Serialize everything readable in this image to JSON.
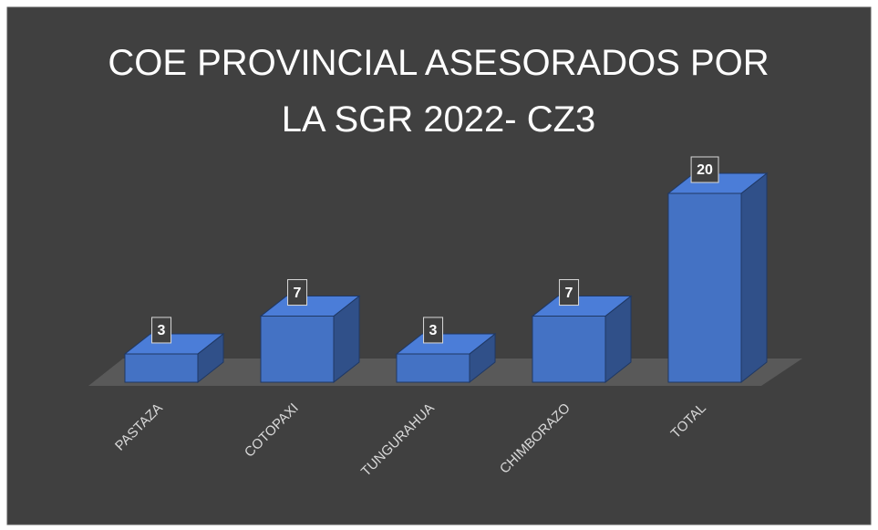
{
  "chart_data": {
    "type": "bar3d",
    "title": [
      "COE PROVINCIAL ASESORADOS POR",
      "LA SGR 2022- CZ3"
    ],
    "categories": [
      "PASTAZA",
      "COTOPAXI",
      "TUNGURAHUA",
      "CHIMBORAZO",
      "TOTAL"
    ],
    "values": [
      3,
      7,
      3,
      7,
      20
    ],
    "color": "#4472c4"
  }
}
